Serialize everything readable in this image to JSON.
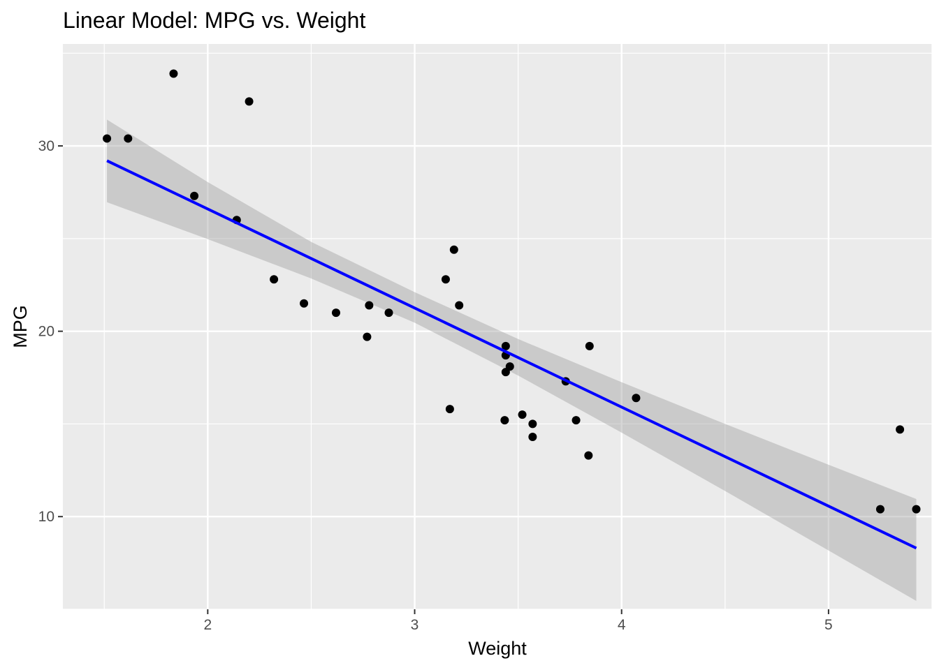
{
  "chart_data": {
    "type": "scatter",
    "title": "Linear Model: MPG vs. Weight",
    "xlabel": "Weight",
    "ylabel": "MPG",
    "xlim": [
      1.3,
      5.5
    ],
    "ylim": [
      5.0,
      35.5
    ],
    "x_ticks": [
      2,
      3,
      4,
      5
    ],
    "x_tick_labels": [
      "2",
      "3",
      "4",
      "5"
    ],
    "x_minor_ticks": [
      1.5,
      2.5,
      3.5,
      4.5,
      5.5
    ],
    "y_ticks": [
      10,
      20,
      30
    ],
    "y_tick_labels": [
      "10",
      "20",
      "30"
    ],
    "y_minor_ticks": [
      5,
      15,
      25,
      35
    ],
    "grid": true,
    "legend": "none",
    "points": {
      "x": [
        2.62,
        2.875,
        2.32,
        3.215,
        3.44,
        3.46,
        3.57,
        3.19,
        3.15,
        3.44,
        3.44,
        4.07,
        3.73,
        3.78,
        5.25,
        5.424,
        5.345,
        2.2,
        1.615,
        1.835,
        2.465,
        3.52,
        3.435,
        3.84,
        3.845,
        1.935,
        2.14,
        1.513,
        3.17,
        2.77,
        3.57,
        2.78
      ],
      "y": [
        21.0,
        21.0,
        22.8,
        21.4,
        18.7,
        18.1,
        14.3,
        24.4,
        22.8,
        19.2,
        17.8,
        16.4,
        17.3,
        15.2,
        10.4,
        10.4,
        14.7,
        32.4,
        30.4,
        33.9,
        21.5,
        15.5,
        15.2,
        13.3,
        19.2,
        27.3,
        26.0,
        30.4,
        15.8,
        19.7,
        15.0,
        21.4
      ]
    },
    "fit_line": {
      "method": "lm",
      "intercept": 37.285,
      "slope": -5.344,
      "x_range": [
        1.513,
        5.424
      ]
    },
    "confidence_band": {
      "x": [
        1.513,
        2.0,
        2.5,
        3.0,
        3.5,
        4.0,
        4.5,
        5.0,
        5.424
      ],
      "lower": [
        26.96,
        24.97,
        22.85,
        20.46,
        17.61,
        14.53,
        11.38,
        8.17,
        5.45
      ],
      "upper": [
        31.42,
        28.05,
        24.82,
        22.11,
        19.58,
        17.25,
        15.0,
        12.8,
        10.95
      ]
    },
    "colors": {
      "panel_background": "#ebebeb",
      "grid": "#ffffff",
      "points": "#000000",
      "fit_line": "#0000ff",
      "band": "#999999",
      "tick_label": "#4d4d4d",
      "tick_mark": "#333333"
    }
  }
}
